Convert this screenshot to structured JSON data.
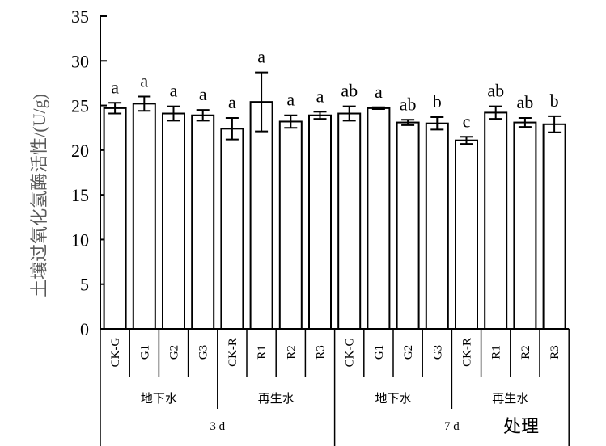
{
  "chart_data": {
    "type": "bar",
    "ylabel": "土壤过氧化氢酶活性/(U/g)",
    "xlabel": "处理",
    "ylim": [
      0,
      35
    ],
    "yticks": [
      0,
      5,
      10,
      15,
      20,
      25,
      30,
      35
    ],
    "grid": false,
    "legend": "none",
    "categories": [
      "CK-G",
      "G1",
      "G2",
      "G3",
      "CK-R",
      "R1",
      "R2",
      "R3",
      "CK-G",
      "G1",
      "G2",
      "G3",
      "CK-R",
      "R1",
      "R2",
      "R3"
    ],
    "values": [
      24.7,
      25.2,
      24.1,
      23.9,
      22.4,
      25.4,
      23.2,
      23.9,
      24.1,
      24.7,
      23.1,
      23.0,
      21.1,
      24.2,
      23.1,
      22.9
    ],
    "errors": [
      0.6,
      0.8,
      0.8,
      0.6,
      1.2,
      3.3,
      0.7,
      0.4,
      0.8,
      0.1,
      0.3,
      0.7,
      0.4,
      0.7,
      0.5,
      0.9
    ],
    "significance": [
      "a",
      "a",
      "a",
      "a",
      "a",
      "a",
      "a",
      "a",
      "ab",
      "a",
      "ab",
      "b",
      "c",
      "ab",
      "ab",
      "b"
    ],
    "water_groups": [
      {
        "label": "地下水",
        "start": 0,
        "end": 3
      },
      {
        "label": "再生水",
        "start": 4,
        "end": 7
      },
      {
        "label": "地下水",
        "start": 8,
        "end": 11
      },
      {
        "label": "再生水",
        "start": 12,
        "end": 15
      }
    ],
    "time_groups": [
      {
        "label": "3 d",
        "start": 0,
        "end": 7
      },
      {
        "label": "7 d",
        "start": 8,
        "end": 15
      }
    ]
  }
}
